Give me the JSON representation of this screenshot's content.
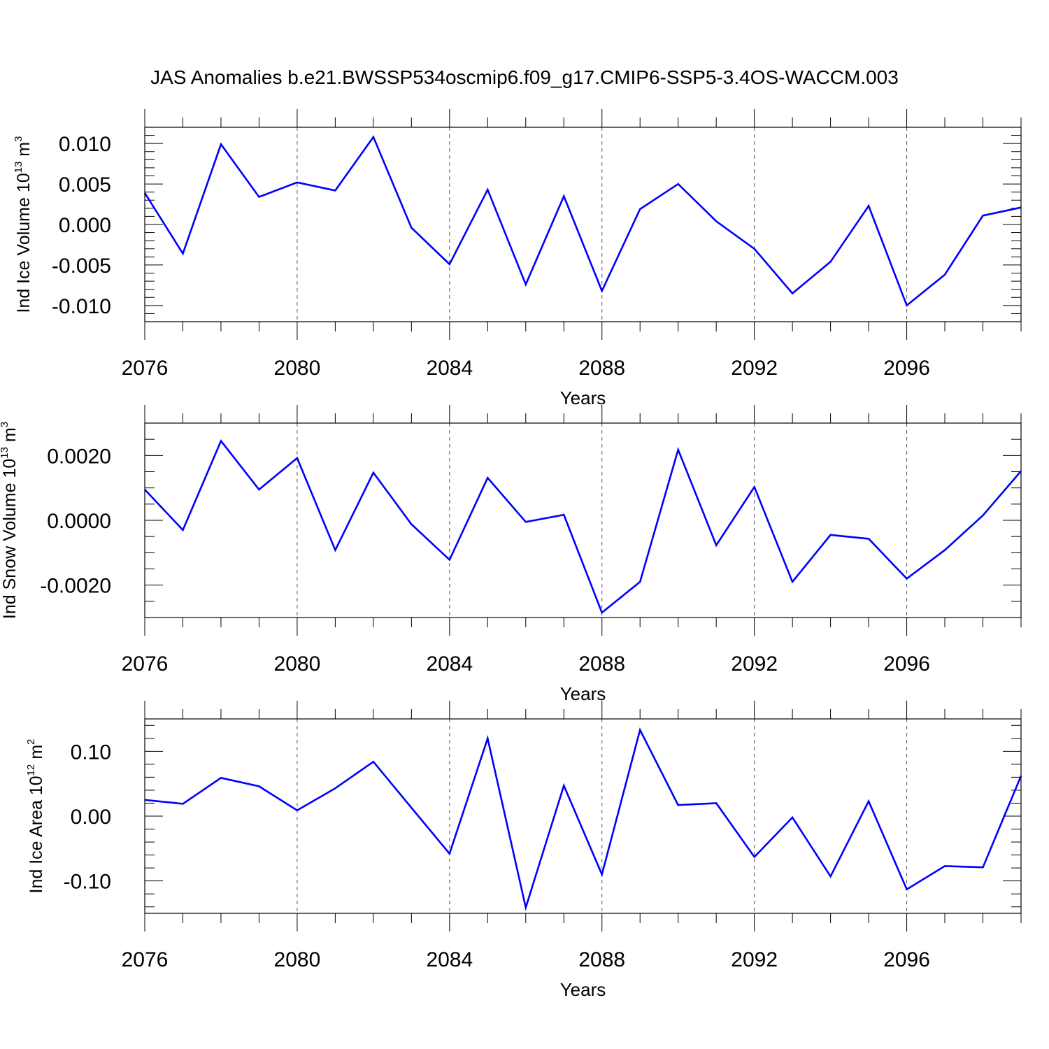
{
  "title": "JAS Anomalies b.e21.BWSSP534oscmip6.f09_g17.CMIP6-SSP5-3.4OS-WACCM.003",
  "colors": {
    "line": "#0000ff",
    "axis": "#000000",
    "grid": "#555555"
  },
  "chart_data": [
    {
      "type": "line",
      "name": "ice-volume",
      "ylabel_main": "Ind Ice Volume 10",
      "ylabel_exp": "13",
      "ylabel_unit": " m",
      "ylabel_unit_exp": "3",
      "xlabel": "Years",
      "xlim": [
        2076,
        2099
      ],
      "ylim": [
        -0.012,
        0.012
      ],
      "xticks": [
        2076,
        2080,
        2084,
        2088,
        2092,
        2096
      ],
      "xtick_labels": [
        "2076",
        "2080",
        "2084",
        "2088",
        "2092",
        "2096"
      ],
      "yticks": [
        -0.01,
        -0.005,
        0.0,
        0.005,
        0.01
      ],
      "ytick_labels": [
        "-0.010",
        "-0.005",
        "0.000",
        "0.005",
        "0.010"
      ],
      "y_minor_step": 0.001,
      "grid_x": [
        2080,
        2084,
        2088,
        2092,
        2096
      ],
      "x": [
        2076,
        2077,
        2078,
        2079,
        2080,
        2081,
        2082,
        2083,
        2084,
        2085,
        2086,
        2087,
        2088,
        2089,
        2090,
        2091,
        2092,
        2093,
        2094,
        2095,
        2096,
        2097,
        2098,
        2099
      ],
      "values": [
        0.0039,
        -0.0036,
        0.0099,
        0.0034,
        0.0052,
        0.0042,
        0.0108,
        -0.0004,
        -0.0049,
        0.0043,
        -0.0074,
        0.0035,
        -0.0082,
        0.0019,
        0.005,
        0.0004,
        -0.003,
        -0.0085,
        -0.0046,
        0.0023,
        -0.01,
        -0.0062,
        0.0011,
        0.0021
      ]
    },
    {
      "type": "line",
      "name": "snow-volume",
      "ylabel_main": "Ind Snow Volume 10",
      "ylabel_exp": "13",
      "ylabel_unit": " m",
      "ylabel_unit_exp": "3",
      "xlabel": "Years",
      "xlim": [
        2076,
        2099
      ],
      "ylim": [
        -0.003,
        0.003
      ],
      "xticks": [
        2076,
        2080,
        2084,
        2088,
        2092,
        2096
      ],
      "xtick_labels": [
        "2076",
        "2080",
        "2084",
        "2088",
        "2092",
        "2096"
      ],
      "yticks": [
        -0.002,
        0.0,
        0.002
      ],
      "ytick_labels": [
        "-0.0020",
        "0.0000",
        "0.0020"
      ],
      "y_minor_step": 0.0005,
      "grid_x": [
        2080,
        2084,
        2088,
        2092,
        2096
      ],
      "x": [
        2076,
        2077,
        2078,
        2079,
        2080,
        2081,
        2082,
        2083,
        2084,
        2085,
        2086,
        2087,
        2088,
        2089,
        2090,
        2091,
        2092,
        2093,
        2094,
        2095,
        2096,
        2097,
        2098,
        2099
      ],
      "values": [
        0.00095,
        -0.0003,
        0.00245,
        0.00095,
        0.00192,
        -0.00092,
        0.00147,
        -0.00012,
        -0.00122,
        0.00131,
        -5e-05,
        0.00017,
        -0.00285,
        -0.0019,
        0.00218,
        -0.00077,
        0.00103,
        -0.0019,
        -0.00045,
        -0.00057,
        -0.0018,
        -0.00092,
        0.00015,
        0.00152
      ]
    },
    {
      "type": "line",
      "name": "ice-area",
      "ylabel_main": "Ind Ice Area 10",
      "ylabel_exp": "12",
      "ylabel_unit": " m",
      "ylabel_unit_exp": "2",
      "xlabel": "Years",
      "xlim": [
        2076,
        2099
      ],
      "ylim": [
        -0.15,
        0.15
      ],
      "xticks": [
        2076,
        2080,
        2084,
        2088,
        2092,
        2096
      ],
      "xtick_labels": [
        "2076",
        "2080",
        "2084",
        "2088",
        "2092",
        "2096"
      ],
      "yticks": [
        -0.1,
        0.0,
        0.1
      ],
      "ytick_labels": [
        "-0.10",
        "0.00",
        "0.10"
      ],
      "y_minor_step": 0.02,
      "grid_x": [
        2080,
        2084,
        2088,
        2092,
        2096
      ],
      "x": [
        2076,
        2077,
        2078,
        2079,
        2080,
        2081,
        2082,
        2083,
        2084,
        2085,
        2086,
        2087,
        2088,
        2089,
        2090,
        2091,
        2092,
        2093,
        2094,
        2095,
        2096,
        2097,
        2098,
        2099
      ],
      "values": [
        0.025,
        0.019,
        0.059,
        0.046,
        0.009,
        0.043,
        0.084,
        0.013,
        -0.058,
        0.12,
        -0.141,
        0.047,
        -0.09,
        0.133,
        0.017,
        0.02,
        -0.063,
        -0.002,
        -0.093,
        0.023,
        -0.113,
        -0.077,
        -0.079,
        0.062
      ]
    }
  ]
}
